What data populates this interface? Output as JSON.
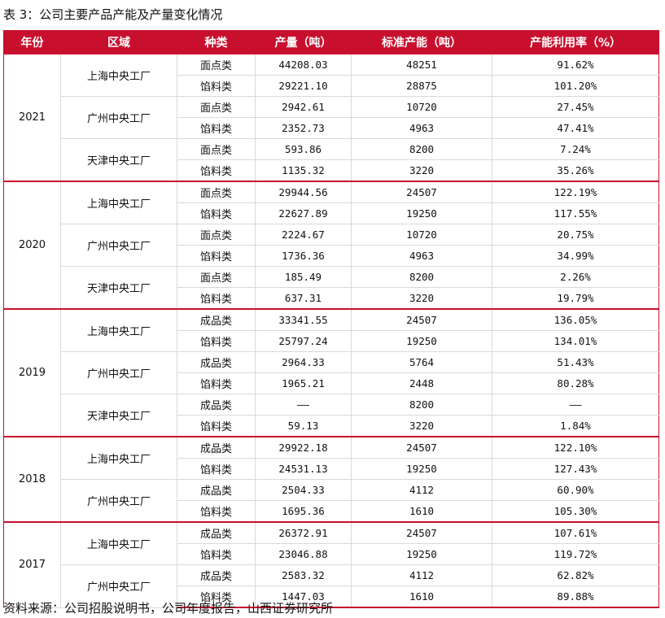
{
  "title": "表 3：公司主要产品产能及产量变化情况",
  "source": "资料来源：公司招股说明书，公司年度报告，山西证券研究所",
  "headers": [
    "年份",
    "区域",
    "种类",
    "产量（吨）",
    "标准产能（吨）",
    "产能利用率（%）"
  ],
  "years": [
    {
      "year": "2021",
      "regions": [
        {
          "name": "上海中央工厂",
          "rows": [
            {
              "kind": "面点类",
              "output": "44208.03",
              "capacity": "48251",
              "util": "91.62%"
            },
            {
              "kind": "馅料类",
              "output": "29221.10",
              "capacity": "28875",
              "util": "101.20%"
            }
          ]
        },
        {
          "name": "广州中央工厂",
          "rows": [
            {
              "kind": "面点类",
              "output": "2942.61",
              "capacity": "10720",
              "util": "27.45%"
            },
            {
              "kind": "馅料类",
              "output": "2352.73",
              "capacity": "4963",
              "util": "47.41%"
            }
          ]
        },
        {
          "name": "天津中央工厂",
          "rows": [
            {
              "kind": "面点类",
              "output": "593.86",
              "capacity": "8200",
              "util": "7.24%"
            },
            {
              "kind": "馅料类",
              "output": "1135.32",
              "capacity": "3220",
              "util": "35.26%"
            }
          ]
        }
      ]
    },
    {
      "year": "2020",
      "regions": [
        {
          "name": "上海中央工厂",
          "rows": [
            {
              "kind": "面点类",
              "output": "29944.56",
              "capacity": "24507",
              "util": "122.19%"
            },
            {
              "kind": "馅料类",
              "output": "22627.89",
              "capacity": "19250",
              "util": "117.55%"
            }
          ]
        },
        {
          "name": "广州中央工厂",
          "rows": [
            {
              "kind": "面点类",
              "output": "2224.67",
              "capacity": "10720",
              "util": "20.75%"
            },
            {
              "kind": "馅料类",
              "output": "1736.36",
              "capacity": "4963",
              "util": "34.99%"
            }
          ]
        },
        {
          "name": "天津中央工厂",
          "rows": [
            {
              "kind": "面点类",
              "output": "185.49",
              "capacity": "8200",
              "util": "2.26%"
            },
            {
              "kind": "馅料类",
              "output": "637.31",
              "capacity": "3220",
              "util": "19.79%"
            }
          ]
        }
      ]
    },
    {
      "year": "2019",
      "regions": [
        {
          "name": "上海中央工厂",
          "rows": [
            {
              "kind": "成品类",
              "output": "33341.55",
              "capacity": "24507",
              "util": "136.05%"
            },
            {
              "kind": "馅料类",
              "output": "25797.24",
              "capacity": "19250",
              "util": "134.01%"
            }
          ]
        },
        {
          "name": "广州中央工厂",
          "rows": [
            {
              "kind": "成品类",
              "output": "2964.33",
              "capacity": "5764",
              "util": "51.43%"
            },
            {
              "kind": "馅料类",
              "output": "1965.21",
              "capacity": "2448",
              "util": "80.28%"
            }
          ]
        },
        {
          "name": "天津中央工厂",
          "rows": [
            {
              "kind": "成品类",
              "output": "——",
              "capacity": "8200",
              "util": "——"
            },
            {
              "kind": "馅料类",
              "output": "59.13",
              "capacity": "3220",
              "util": "1.84%"
            }
          ]
        }
      ]
    },
    {
      "year": "2018",
      "regions": [
        {
          "name": "上海中央工厂",
          "rows": [
            {
              "kind": "成品类",
              "output": "29922.18",
              "capacity": "24507",
              "util": "122.10%"
            },
            {
              "kind": "馅料类",
              "output": "24531.13",
              "capacity": "19250",
              "util": "127.43%"
            }
          ]
        },
        {
          "name": "广州中央工厂",
          "rows": [
            {
              "kind": "成品类",
              "output": "2504.33",
              "capacity": "4112",
              "util": "60.90%"
            },
            {
              "kind": "馅料类",
              "output": "1695.36",
              "capacity": "1610",
              "util": "105.30%"
            }
          ]
        }
      ]
    },
    {
      "year": "2017",
      "regions": [
        {
          "name": "上海中央工厂",
          "rows": [
            {
              "kind": "成品类",
              "output": "26372.91",
              "capacity": "24507",
              "util": "107.61%"
            },
            {
              "kind": "馅料类",
              "output": "23046.88",
              "capacity": "19250",
              "util": "119.72%"
            }
          ]
        },
        {
          "name": "广州中央工厂",
          "rows": [
            {
              "kind": "成品类",
              "output": "2583.32",
              "capacity": "4112",
              "util": "62.82%"
            },
            {
              "kind": "馅料类",
              "output": "1447.03",
              "capacity": "1610",
              "util": "89.88%"
            }
          ]
        }
      ]
    }
  ],
  "colors": {
    "header_bg": "#c8102e",
    "header_text": "#ffffff",
    "grid": "#d9d9d9"
  }
}
